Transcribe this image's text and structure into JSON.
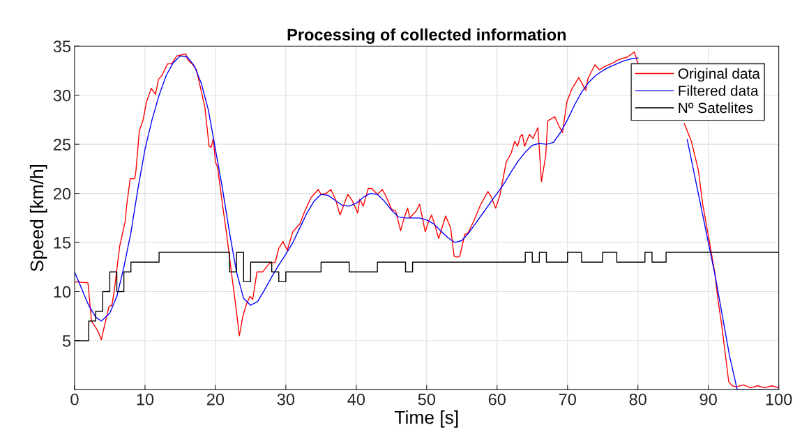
{
  "chart_data": {
    "type": "line",
    "title": "Processing of collected information",
    "xlabel": "Time [s]",
    "ylabel": "Speed [km/h]",
    "xlim": [
      0,
      100
    ],
    "xticks": [
      0,
      10,
      20,
      30,
      40,
      50,
      60,
      70,
      80,
      90,
      100
    ],
    "ylim": [
      0,
      35
    ],
    "yticks": [
      5,
      10,
      15,
      20,
      25,
      30,
      35
    ],
    "grid": true,
    "legend": "top right",
    "marker": "none",
    "line_style": "solid",
    "series": [
      {
        "name": "Original data",
        "color": "#ff0000",
        "x": [
          0,
          1.9,
          2.4,
          3.3,
          3.8,
          4.3,
          4.9,
          5.3,
          5.6,
          6.4,
          7.2,
          7.4,
          7.9,
          8.55,
          8.7,
          9.2,
          9.7,
          10.2,
          10.9,
          11.5,
          11.9,
          12.4,
          13.2,
          13.8,
          14.5,
          15.8,
          16.1,
          16.8,
          17.3,
          17.8,
          18.5,
          19.1,
          19.4,
          19.7,
          20.0,
          20.3,
          21.0,
          21.6,
          22.3,
          22.9,
          23.4,
          23.9,
          24.4,
          24.9,
          25.3,
          25.9,
          26.7,
          27.7,
          28.5,
          29.0,
          29.6,
          30.2,
          31.0,
          32.0,
          32.7,
          33.6,
          34.6,
          35.0,
          35.7,
          36.4,
          37.1,
          37.7,
          38.8,
          39.4,
          39.8,
          40.2,
          40.5,
          41.0,
          41.7,
          42.2,
          43.0,
          43.7,
          44.3,
          45.0,
          45.6,
          46.3,
          46.8,
          47.3,
          47.6,
          48.5,
          49.0,
          49.8,
          50.3,
          50.7,
          51.2,
          51.7,
          52.7,
          53.4,
          53.9,
          54.4,
          54.7,
          55.4,
          55.9,
          56.7,
          57.7,
          58.7,
          59.2,
          59.8,
          60.4,
          61.3,
          62.0,
          62.5,
          62.9,
          63.3,
          63.6,
          63.9,
          64.6,
          65.1,
          65.8,
          66.3,
          66.9,
          67.2,
          68.2,
          68.9,
          69.3,
          69.9,
          70.6,
          71.6,
          72.6,
          72.9,
          73.9,
          74.5,
          75.5,
          76.5,
          77.2,
          78.5,
          79.5,
          80.0,
          83.0,
          86.6,
          87.6,
          88.6,
          89.2,
          90.2,
          90.9,
          91.4,
          91.9,
          92.4,
          92.9,
          93.4,
          94.0,
          95.0,
          96.0,
          97.0,
          98.0,
          99.0,
          100.0
        ],
        "values": [
          11.0,
          10.9,
          7.0,
          6.0,
          5.1,
          6.7,
          8.5,
          8.6,
          9.9,
          14.6,
          17.2,
          18.8,
          21.5,
          21.5,
          22.2,
          26.4,
          27.4,
          29.3,
          30.7,
          30.1,
          31.6,
          32.0,
          33.2,
          33.2,
          34.0,
          34.2,
          33.6,
          33.1,
          32.6,
          31.0,
          28.8,
          24.8,
          24.7,
          25.6,
          23.2,
          22.7,
          18.9,
          15.8,
          11.8,
          8.5,
          5.5,
          7.5,
          8.7,
          9.5,
          9.2,
          12.0,
          12.0,
          12.9,
          13.0,
          14.4,
          15.1,
          14.2,
          16.1,
          16.9,
          18.2,
          19.6,
          20.4,
          19.9,
          20.0,
          20.4,
          19.3,
          17.8,
          19.9,
          19.3,
          18.7,
          18.0,
          19.4,
          18.7,
          20.5,
          20.5,
          19.9,
          20.4,
          19.6,
          18.4,
          18.2,
          16.2,
          17.5,
          18.5,
          17.5,
          18.2,
          18.9,
          16.1,
          17.2,
          17.8,
          16.7,
          15.4,
          17.7,
          16.5,
          13.6,
          13.5,
          13.6,
          15.8,
          16.0,
          17.2,
          18.9,
          20.2,
          19.6,
          18.5,
          19.8,
          23.2,
          24.1,
          25.3,
          24.8,
          25.8,
          26.0,
          24.8,
          26.0,
          25.6,
          26.7,
          21.2,
          23.8,
          27.4,
          27.8,
          26.7,
          26.2,
          29.3,
          30.6,
          31.8,
          30.5,
          31.7,
          33.1,
          32.6,
          33.0,
          33.3,
          33.6,
          33.9,
          34.4,
          33.2,
          null,
          27.1,
          25.3,
          22.3,
          18.9,
          14.9,
          12.0,
          9.0,
          6.6,
          3.7,
          0.8,
          0.4,
          0.3,
          0.5,
          0.2,
          0.4,
          0.2,
          0.4,
          0.2
        ]
      },
      {
        "name": "Filtered data",
        "color": "#0000ff",
        "x": [
          0,
          1,
          2,
          3,
          3.8,
          5,
          6,
          7,
          8,
          9,
          10,
          11,
          12,
          13,
          14,
          15,
          16,
          17,
          18,
          19,
          20,
          21,
          22,
          23,
          24,
          25,
          26,
          27,
          28,
          29,
          30,
          31,
          32,
          33,
          34,
          35,
          36,
          37,
          38,
          39,
          40,
          41,
          42,
          43,
          44,
          45,
          46,
          47,
          48,
          49,
          50,
          51,
          52,
          53,
          54,
          55,
          56,
          57,
          58,
          59,
          60,
          61,
          62,
          63,
          64,
          65,
          66,
          67,
          68,
          69,
          70,
          71,
          72,
          73,
          74,
          75,
          76,
          77,
          78,
          79,
          80,
          83,
          87,
          88,
          89,
          90,
          91,
          92,
          93,
          94.1,
          95,
          100
        ],
        "values": [
          12.0,
          10.3,
          8.6,
          7.4,
          7.0,
          7.8,
          9.5,
          12.5,
          16.0,
          20.5,
          24.5,
          27.5,
          30.0,
          32.0,
          33.3,
          34.0,
          33.9,
          33.0,
          31.2,
          28.5,
          24.5,
          20.5,
          16.0,
          12.0,
          9.3,
          8.6,
          9.0,
          10.2,
          11.5,
          12.7,
          13.8,
          15.0,
          16.5,
          18.0,
          19.2,
          19.9,
          19.8,
          19.3,
          18.8,
          18.7,
          19.0,
          19.6,
          20.0,
          19.9,
          19.2,
          18.3,
          17.6,
          17.5,
          17.5,
          17.5,
          17.3,
          16.9,
          16.2,
          15.5,
          15.0,
          15.2,
          16.0,
          17.0,
          18.0,
          19.0,
          20.0,
          21.0,
          22.2,
          23.3,
          24.2,
          24.9,
          25.1,
          25.0,
          25.2,
          26.2,
          27.5,
          29.0,
          30.3,
          31.3,
          32.0,
          32.5,
          32.9,
          33.2,
          33.5,
          33.7,
          33.8,
          null,
          25.5,
          22.0,
          18.5,
          15.0,
          11.5,
          7.5,
          3.5,
          0,
          0,
          0
        ]
      },
      {
        "name": "Nº Satelites",
        "color": "#000000",
        "type": "step",
        "x": [
          0,
          2,
          3,
          4,
          5,
          6,
          7,
          8,
          12,
          22,
          23,
          24,
          25,
          28,
          29,
          30,
          35,
          39,
          43,
          47,
          48,
          64,
          65,
          66,
          67,
          70,
          72,
          75,
          77,
          81,
          82,
          84,
          100
        ],
        "values": [
          5,
          7,
          8,
          10,
          12,
          10,
          12,
          13,
          14,
          12,
          14,
          11,
          13,
          12,
          11,
          12,
          13,
          12,
          13,
          12,
          13,
          14,
          13,
          14,
          13,
          14,
          13,
          14,
          13,
          14,
          13,
          14,
          14
        ]
      }
    ]
  }
}
